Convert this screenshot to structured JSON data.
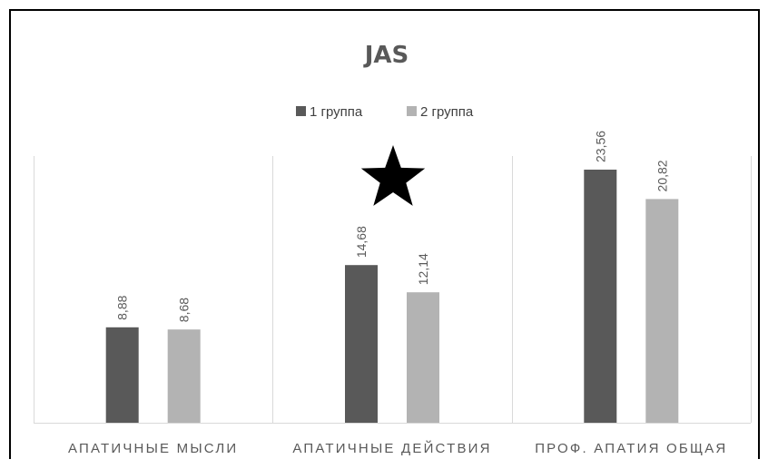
{
  "chart_data": {
    "type": "bar",
    "title": "JAS",
    "categories": [
      "АПАТИЧНЫЕ МЫСЛИ",
      "АПАТИЧНЫЕ ДЕЙСТВИЯ",
      "ПРОФ. АПАТИЯ ОБЩАЯ"
    ],
    "series": [
      {
        "name": "1 группа",
        "values": [
          8.88,
          14.68,
          23.56
        ],
        "labels": [
          "8,88",
          "14,68",
          "23,56"
        ],
        "color": "#595959"
      },
      {
        "name": "2 группа",
        "values": [
          8.68,
          12.14,
          20.82
        ],
        "labels": [
          "8,68",
          "12,14",
          "20,82"
        ],
        "color": "#b3b3b3"
      }
    ],
    "ylim": [
      0,
      28
    ],
    "grid": "vertical category separators",
    "legend_position": "top",
    "annotation": {
      "type": "star",
      "category": "АПАТИЧНЫЕ ДЕЙСТВИЯ",
      "color": "#000000"
    }
  }
}
